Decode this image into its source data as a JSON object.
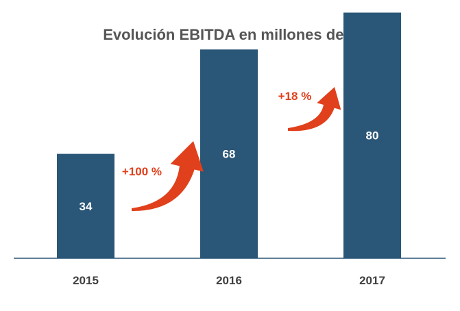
{
  "chart_data": {
    "type": "bar",
    "title": "Evolución EBITDA en millones de €",
    "categories": [
      "2015",
      "2016",
      "2017"
    ],
    "values": [
      34,
      68,
      80
    ],
    "value_labels": [
      "34",
      "68",
      "80"
    ],
    "ylim": [
      0,
      83
    ],
    "grid": false,
    "legend": "none",
    "annotations": [
      {
        "text": "+100 %",
        "from": "2015",
        "to": "2016"
      },
      {
        "text": "+18 %",
        "from": "2016",
        "to": "2017"
      }
    ],
    "colors": {
      "bar": "#2a5677",
      "bar_label": "#ffffff",
      "axis": "#2a5677",
      "title": "#555555",
      "tick": "#404040",
      "arrow": "#e0401c",
      "annotation": "#e0401c"
    }
  }
}
